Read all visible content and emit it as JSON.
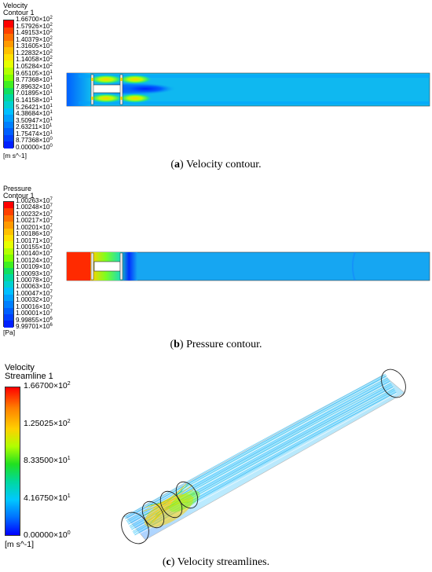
{
  "panel_a": {
    "legend_title": "Velocity",
    "legend_subtitle": "Contour 1",
    "ticks": [
      {
        "m": "1.66700",
        "e": "2"
      },
      {
        "m": "1.57926",
        "e": "2"
      },
      {
        "m": "1.49153",
        "e": "2"
      },
      {
        "m": "1.40379",
        "e": "2"
      },
      {
        "m": "1.31605",
        "e": "2"
      },
      {
        "m": "1.22832",
        "e": "2"
      },
      {
        "m": "1.14058",
        "e": "2"
      },
      {
        "m": "1.05284",
        "e": "2"
      },
      {
        "m": "9.65105",
        "e": "1"
      },
      {
        "m": "8.77368",
        "e": "1"
      },
      {
        "m": "7.89632",
        "e": "1"
      },
      {
        "m": "7.01895",
        "e": "1"
      },
      {
        "m": "6.14158",
        "e": "1"
      },
      {
        "m": "5.26421",
        "e": "1"
      },
      {
        "m": "4.38684",
        "e": "1"
      },
      {
        "m": "3.50947",
        "e": "1"
      },
      {
        "m": "2.63211",
        "e": "1"
      },
      {
        "m": "1.75474",
        "e": "1"
      },
      {
        "m": "8.77368",
        "e": "0"
      },
      {
        "m": "0.00000",
        "e": "0"
      }
    ],
    "unit": "[m s^-1]",
    "caption_label": "a",
    "caption_text": "Velocity contour."
  },
  "panel_b": {
    "legend_title": "Pressure",
    "legend_subtitle": "Contour 1",
    "ticks": [
      {
        "m": "1.00263",
        "e": "7"
      },
      {
        "m": "1.00248",
        "e": "7"
      },
      {
        "m": "1.00232",
        "e": "7"
      },
      {
        "m": "1.00217",
        "e": "7"
      },
      {
        "m": "1.00201",
        "e": "7"
      },
      {
        "m": "1.00186",
        "e": "7"
      },
      {
        "m": "1.00171",
        "e": "7"
      },
      {
        "m": "1.00155",
        "e": "7"
      },
      {
        "m": "1.00140",
        "e": "7"
      },
      {
        "m": "1.00124",
        "e": "7"
      },
      {
        "m": "1.00109",
        "e": "7"
      },
      {
        "m": "1.00093",
        "e": "7"
      },
      {
        "m": "1.00078",
        "e": "7"
      },
      {
        "m": "1.00063",
        "e": "7"
      },
      {
        "m": "1.00047",
        "e": "7"
      },
      {
        "m": "1.00032",
        "e": "7"
      },
      {
        "m": "1.00016",
        "e": "7"
      },
      {
        "m": "1.00001",
        "e": "7"
      },
      {
        "m": "9.99855",
        "e": "6"
      },
      {
        "m": "9.99701",
        "e": "6"
      }
    ],
    "unit": "[Pa]",
    "caption_label": "b",
    "caption_text": "Pressure contour."
  },
  "panel_c": {
    "legend_title": "Velocity",
    "legend_subtitle": "Streamline 1",
    "ticks": [
      {
        "m": "1.66700",
        "e": "2"
      },
      {
        "m": "1.25025",
        "e": "2"
      },
      {
        "m": "8.33500",
        "e": "1"
      },
      {
        "m": "4.16750",
        "e": "1"
      },
      {
        "m": "0.00000",
        "e": "0"
      }
    ],
    "unit": "[m s^-1]",
    "caption_label": "c",
    "caption_text": "Velocity streamlines."
  },
  "colors": {
    "bands": [
      "#ff0000",
      "#ff4000",
      "#ff7000",
      "#ff9a00",
      "#ffc000",
      "#ffe000",
      "#e6ff00",
      "#b4ff00",
      "#80ff00",
      "#40f020",
      "#10e060",
      "#00d8a0",
      "#00d0d0",
      "#00c0ff",
      "#00a0ff",
      "#0080ff",
      "#0060ff",
      "#0040ff",
      "#0020ff",
      "#0000ff"
    ],
    "flow_background": "#0fb8f0",
    "pressure_background": "#16a6f2"
  }
}
